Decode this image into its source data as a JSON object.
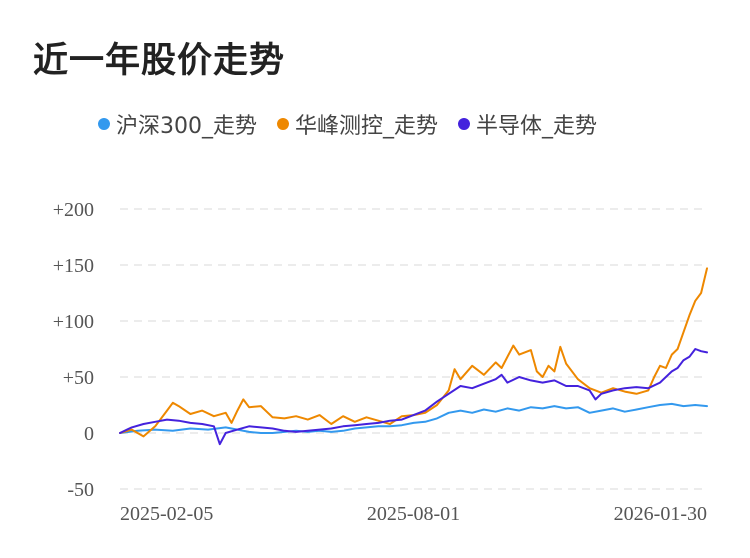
{
  "title": "近一年股价走势",
  "chart_data": {
    "type": "line",
    "title": "近一年股价走势",
    "xlabel": "",
    "ylabel": "",
    "ylim": [
      -50,
      200
    ],
    "y_ticks": [
      {
        "value": 200,
        "label": "+200"
      },
      {
        "value": 150,
        "label": "+150"
      },
      {
        "value": 100,
        "label": "+100"
      },
      {
        "value": 50,
        "label": "+50"
      },
      {
        "value": 0,
        "label": "0"
      },
      {
        "value": -50,
        "label": "-50"
      }
    ],
    "x_ticks": [
      {
        "t": 0.0,
        "label": "2025-02-05"
      },
      {
        "t": 0.5,
        "label": "2025-08-01"
      },
      {
        "t": 1.0,
        "label": "2026-01-30"
      }
    ],
    "legend_position": "top",
    "grid": true,
    "series": [
      {
        "name": "沪深300_走势",
        "color": "#3399ee",
        "points": [
          [
            0,
            0
          ],
          [
            0.03,
            2
          ],
          [
            0.06,
            3
          ],
          [
            0.09,
            2
          ],
          [
            0.12,
            4
          ],
          [
            0.15,
            3
          ],
          [
            0.18,
            5
          ],
          [
            0.2,
            3
          ],
          [
            0.22,
            1
          ],
          [
            0.24,
            0
          ],
          [
            0.26,
            0
          ],
          [
            0.28,
            1
          ],
          [
            0.3,
            2
          ],
          [
            0.32,
            1
          ],
          [
            0.34,
            2
          ],
          [
            0.36,
            1
          ],
          [
            0.38,
            2
          ],
          [
            0.4,
            4
          ],
          [
            0.42,
            5
          ],
          [
            0.44,
            6
          ],
          [
            0.46,
            6
          ],
          [
            0.48,
            7
          ],
          [
            0.5,
            9
          ],
          [
            0.52,
            10
          ],
          [
            0.54,
            13
          ],
          [
            0.56,
            18
          ],
          [
            0.58,
            20
          ],
          [
            0.6,
            18
          ],
          [
            0.62,
            21
          ],
          [
            0.64,
            19
          ],
          [
            0.66,
            22
          ],
          [
            0.68,
            20
          ],
          [
            0.7,
            23
          ],
          [
            0.72,
            22
          ],
          [
            0.74,
            24
          ],
          [
            0.76,
            22
          ],
          [
            0.78,
            23
          ],
          [
            0.8,
            18
          ],
          [
            0.82,
            20
          ],
          [
            0.84,
            22
          ],
          [
            0.86,
            19
          ],
          [
            0.88,
            21
          ],
          [
            0.9,
            23
          ],
          [
            0.92,
            25
          ],
          [
            0.94,
            26
          ],
          [
            0.96,
            24
          ],
          [
            0.98,
            25
          ],
          [
            1.0,
            24
          ]
        ]
      },
      {
        "name": "华峰测控_走势",
        "color": "#ee8800",
        "points": [
          [
            0,
            0
          ],
          [
            0.02,
            3
          ],
          [
            0.04,
            -3
          ],
          [
            0.06,
            6
          ],
          [
            0.08,
            20
          ],
          [
            0.09,
            27
          ],
          [
            0.1,
            24
          ],
          [
            0.12,
            17
          ],
          [
            0.14,
            20
          ],
          [
            0.16,
            15
          ],
          [
            0.18,
            18
          ],
          [
            0.19,
            9
          ],
          [
            0.2,
            20
          ],
          [
            0.21,
            30
          ],
          [
            0.22,
            23
          ],
          [
            0.24,
            24
          ],
          [
            0.26,
            14
          ],
          [
            0.28,
            13
          ],
          [
            0.3,
            15
          ],
          [
            0.32,
            12
          ],
          [
            0.34,
            16
          ],
          [
            0.36,
            8
          ],
          [
            0.38,
            15
          ],
          [
            0.4,
            10
          ],
          [
            0.42,
            14
          ],
          [
            0.44,
            11
          ],
          [
            0.46,
            8
          ],
          [
            0.48,
            15
          ],
          [
            0.5,
            16
          ],
          [
            0.52,
            18
          ],
          [
            0.54,
            25
          ],
          [
            0.56,
            38
          ],
          [
            0.57,
            57
          ],
          [
            0.58,
            48
          ],
          [
            0.6,
            60
          ],
          [
            0.62,
            52
          ],
          [
            0.64,
            63
          ],
          [
            0.65,
            58
          ],
          [
            0.67,
            78
          ],
          [
            0.68,
            70
          ],
          [
            0.7,
            74
          ],
          [
            0.71,
            55
          ],
          [
            0.72,
            50
          ],
          [
            0.73,
            60
          ],
          [
            0.74,
            55
          ],
          [
            0.75,
            77
          ],
          [
            0.76,
            62
          ],
          [
            0.78,
            48
          ],
          [
            0.8,
            40
          ],
          [
            0.82,
            36
          ],
          [
            0.84,
            40
          ],
          [
            0.86,
            37
          ],
          [
            0.88,
            35
          ],
          [
            0.9,
            38
          ],
          [
            0.91,
            50
          ],
          [
            0.92,
            60
          ],
          [
            0.93,
            58
          ],
          [
            0.94,
            70
          ],
          [
            0.95,
            75
          ],
          [
            0.96,
            90
          ],
          [
            0.97,
            105
          ],
          [
            0.98,
            118
          ],
          [
            0.99,
            125
          ],
          [
            1.0,
            147
          ]
        ]
      },
      {
        "name": "半导体_走势",
        "color": "#4422dd",
        "points": [
          [
            0,
            0
          ],
          [
            0.02,
            5
          ],
          [
            0.04,
            8
          ],
          [
            0.06,
            10
          ],
          [
            0.08,
            12
          ],
          [
            0.1,
            11
          ],
          [
            0.12,
            9
          ],
          [
            0.14,
            8
          ],
          [
            0.16,
            6
          ],
          [
            0.17,
            -10
          ],
          [
            0.18,
            0
          ],
          [
            0.2,
            3
          ],
          [
            0.22,
            6
          ],
          [
            0.24,
            5
          ],
          [
            0.26,
            4
          ],
          [
            0.28,
            2
          ],
          [
            0.3,
            1
          ],
          [
            0.32,
            2
          ],
          [
            0.34,
            3
          ],
          [
            0.36,
            4
          ],
          [
            0.38,
            6
          ],
          [
            0.4,
            7
          ],
          [
            0.42,
            8
          ],
          [
            0.44,
            9
          ],
          [
            0.46,
            11
          ],
          [
            0.48,
            12
          ],
          [
            0.5,
            16
          ],
          [
            0.52,
            20
          ],
          [
            0.54,
            28
          ],
          [
            0.56,
            35
          ],
          [
            0.58,
            42
          ],
          [
            0.6,
            40
          ],
          [
            0.62,
            44
          ],
          [
            0.64,
            48
          ],
          [
            0.65,
            52
          ],
          [
            0.66,
            45
          ],
          [
            0.68,
            50
          ],
          [
            0.7,
            47
          ],
          [
            0.72,
            45
          ],
          [
            0.74,
            47
          ],
          [
            0.76,
            42
          ],
          [
            0.78,
            42
          ],
          [
            0.8,
            38
          ],
          [
            0.81,
            30
          ],
          [
            0.82,
            35
          ],
          [
            0.84,
            38
          ],
          [
            0.86,
            40
          ],
          [
            0.88,
            41
          ],
          [
            0.9,
            40
          ],
          [
            0.92,
            45
          ],
          [
            0.94,
            55
          ],
          [
            0.95,
            58
          ],
          [
            0.96,
            65
          ],
          [
            0.97,
            68
          ],
          [
            0.98,
            75
          ],
          [
            0.99,
            73
          ],
          [
            1.0,
            72
          ]
        ]
      }
    ]
  }
}
